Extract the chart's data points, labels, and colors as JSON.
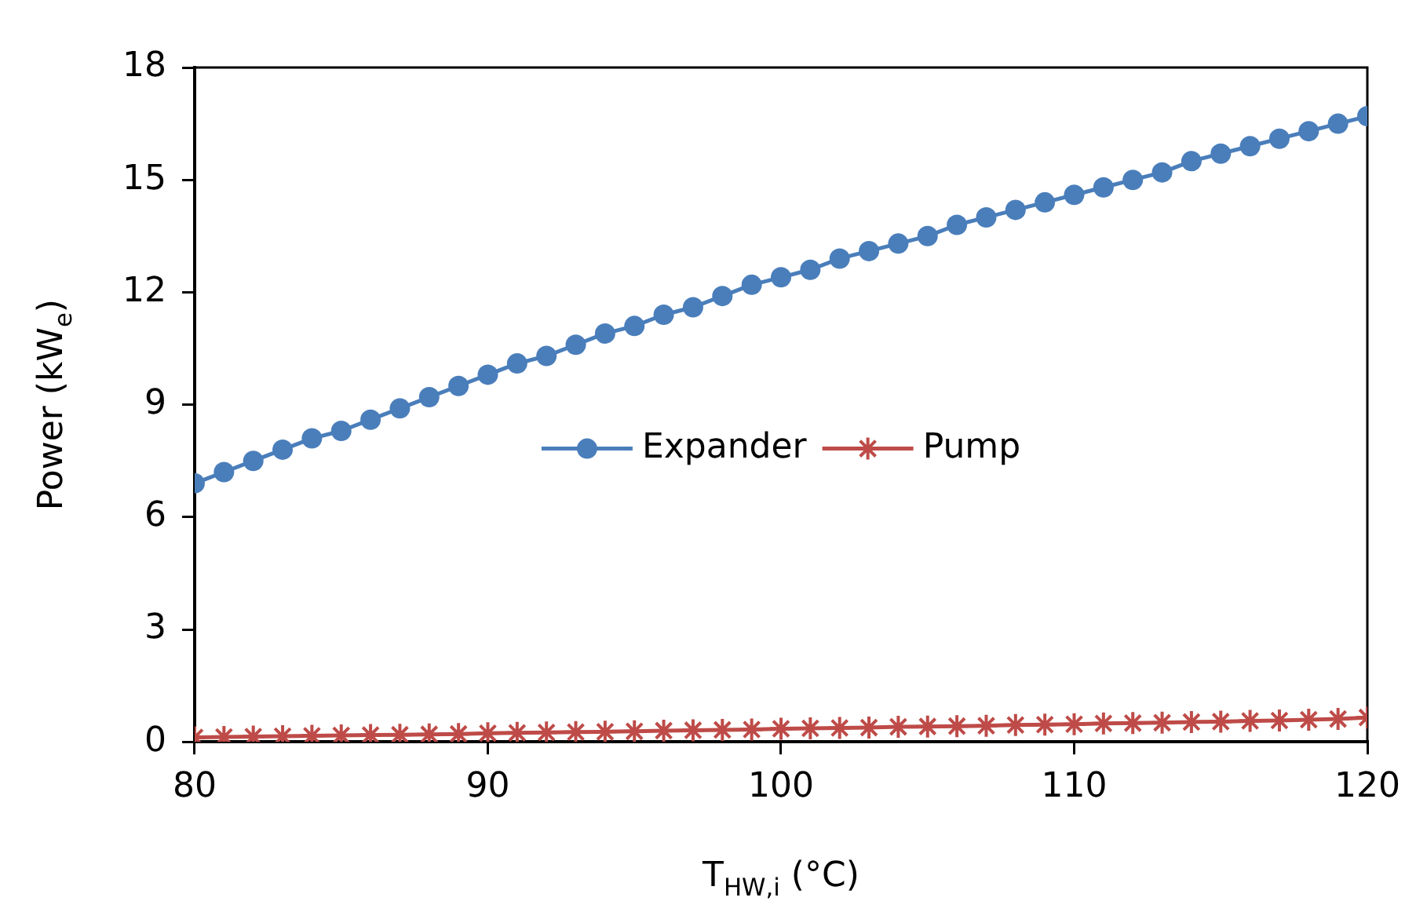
{
  "chart_data": {
    "type": "line",
    "xlabel": "T$_{HW,i}$ (°C)",
    "ylabel": "Power (kW$_{e}$)",
    "x": [
      80,
      81,
      82,
      83,
      84,
      85,
      86,
      87,
      88,
      89,
      90,
      91,
      92,
      93,
      94,
      95,
      96,
      97,
      98,
      99,
      100,
      101,
      102,
      103,
      104,
      105,
      106,
      107,
      108,
      109,
      110,
      111,
      112,
      113,
      114,
      115,
      116,
      117,
      118,
      119,
      120
    ],
    "series": [
      {
        "name": "Expander",
        "color": "#4a7ebb",
        "marker": "circle",
        "values": [
          6.9,
          7.2,
          7.5,
          7.8,
          8.1,
          8.3,
          8.6,
          8.9,
          9.2,
          9.5,
          9.8,
          10.1,
          10.3,
          10.6,
          10.9,
          11.1,
          11.4,
          11.6,
          11.9,
          12.2,
          12.4,
          12.6,
          12.9,
          13.1,
          13.3,
          13.5,
          13.8,
          14.0,
          14.2,
          14.4,
          14.6,
          14.8,
          15.0,
          15.2,
          15.5,
          15.7,
          15.9,
          16.1,
          16.3,
          16.5,
          16.7
        ]
      },
      {
        "name": "Pump",
        "color": "#be4b48",
        "marker": "cross",
        "values": [
          0.12,
          0.13,
          0.14,
          0.15,
          0.16,
          0.17,
          0.18,
          0.19,
          0.2,
          0.21,
          0.23,
          0.24,
          0.25,
          0.26,
          0.27,
          0.28,
          0.3,
          0.31,
          0.32,
          0.33,
          0.35,
          0.36,
          0.37,
          0.38,
          0.4,
          0.41,
          0.42,
          0.43,
          0.45,
          0.46,
          0.47,
          0.49,
          0.5,
          0.51,
          0.53,
          0.54,
          0.56,
          0.57,
          0.59,
          0.61,
          0.65
        ]
      }
    ],
    "xlim": [
      80,
      120
    ],
    "xticks": [
      80,
      90,
      100,
      110,
      120
    ],
    "ylim": [
      0,
      18
    ],
    "yticks": [
      0,
      3,
      6,
      9,
      12,
      15,
      18
    ],
    "grid": false,
    "legend": "center",
    "line_style": "solid"
  }
}
